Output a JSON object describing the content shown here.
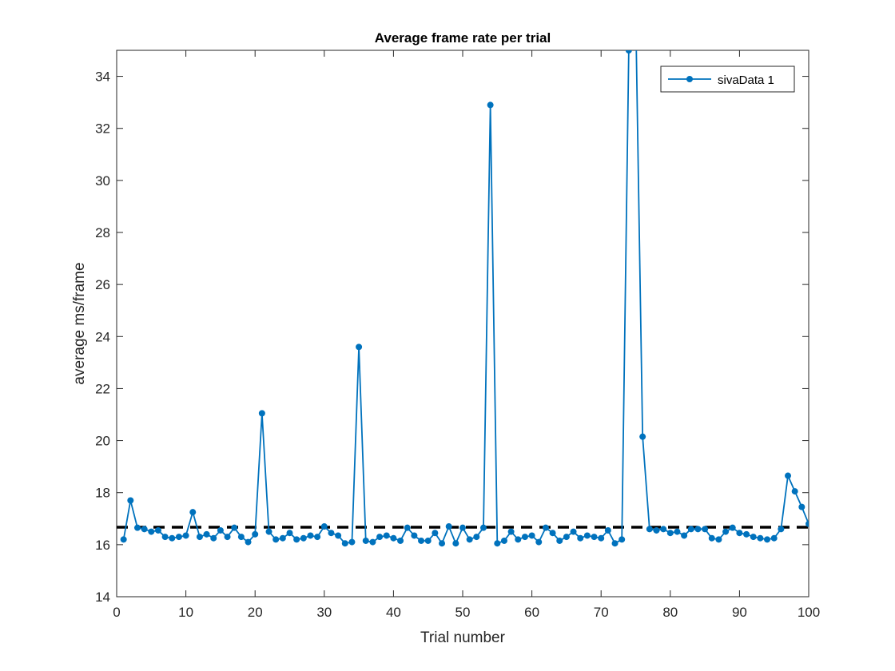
{
  "chart_data": {
    "type": "line",
    "title": "Average frame rate per trial",
    "xlabel": "Trial number",
    "ylabel": "average ms/frame",
    "xlim": [
      0,
      100
    ],
    "ylim": [
      14,
      35
    ],
    "xticks": [
      0,
      10,
      20,
      30,
      40,
      50,
      60,
      70,
      80,
      90,
      100
    ],
    "yticks": [
      14,
      16,
      18,
      20,
      22,
      24,
      26,
      28,
      30,
      32,
      34
    ],
    "legend": {
      "position": "top-right",
      "entries": [
        "sivaData 1"
      ]
    },
    "grid": false,
    "colors": {
      "series": "#0072bd",
      "reference": "#000000",
      "axes": "#262626"
    },
    "series": [
      {
        "name": "sivaData 1",
        "x": [
          1,
          2,
          3,
          4,
          5,
          6,
          7,
          8,
          9,
          10,
          11,
          12,
          13,
          14,
          15,
          16,
          17,
          18,
          19,
          20,
          21,
          22,
          23,
          24,
          25,
          26,
          27,
          28,
          29,
          30,
          31,
          32,
          33,
          34,
          35,
          36,
          37,
          38,
          39,
          40,
          41,
          42,
          43,
          44,
          45,
          46,
          47,
          48,
          49,
          50,
          51,
          52,
          53,
          54,
          55,
          56,
          57,
          58,
          59,
          60,
          61,
          62,
          63,
          64,
          65,
          66,
          67,
          68,
          69,
          70,
          71,
          72,
          73,
          74,
          75,
          76,
          77,
          78,
          79,
          80,
          81,
          82,
          83,
          84,
          85,
          86,
          87,
          88,
          89,
          90,
          91,
          92,
          93,
          94,
          95,
          96,
          97,
          98,
          99,
          100
        ],
        "y": [
          16.2,
          17.7,
          16.65,
          16.6,
          16.5,
          16.55,
          16.3,
          16.25,
          16.3,
          16.35,
          17.25,
          16.3,
          16.4,
          16.25,
          16.55,
          16.3,
          16.65,
          16.3,
          16.1,
          16.4,
          21.05,
          16.5,
          16.2,
          16.25,
          16.45,
          16.2,
          16.25,
          16.35,
          16.3,
          16.7,
          16.45,
          16.35,
          16.05,
          16.1,
          23.6,
          16.15,
          16.1,
          16.3,
          16.35,
          16.25,
          16.15,
          16.65,
          16.35,
          16.15,
          16.15,
          16.45,
          16.05,
          16.7,
          16.05,
          16.65,
          16.2,
          16.3,
          16.65,
          32.9,
          16.05,
          16.15,
          16.5,
          16.2,
          16.3,
          16.35,
          16.1,
          16.65,
          16.45,
          16.15,
          16.3,
          16.5,
          16.25,
          16.35,
          16.3,
          16.25,
          16.55,
          16.05,
          16.2,
          35.0,
          36.5,
          20.15,
          16.6,
          16.55,
          16.6,
          16.45,
          16.5,
          16.35,
          16.6,
          16.6,
          16.6,
          16.25,
          16.2,
          16.5,
          16.65,
          16.45,
          16.4,
          16.3,
          16.25,
          16.2,
          16.25,
          16.6,
          18.65,
          18.05,
          17.45,
          16.8
        ]
      }
    ],
    "reference_line": {
      "y": 16.67,
      "style": "dashed"
    }
  }
}
